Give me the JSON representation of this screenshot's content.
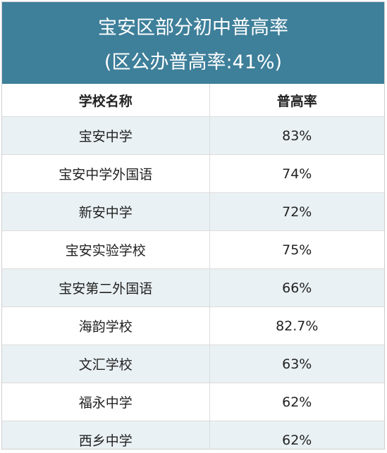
{
  "title": {
    "line1": "宝安区部分初中普高率",
    "line2": "(区公办普高率:41%)"
  },
  "table": {
    "headers": [
      "学校名称",
      "普高率"
    ],
    "rows": [
      {
        "school": "宝安中学",
        "rate": "83%"
      },
      {
        "school": "宝安中学外国语",
        "rate": "74%"
      },
      {
        "school": "新安中学",
        "rate": "72%"
      },
      {
        "school": "宝安实验学校",
        "rate": "75%"
      },
      {
        "school": "宝安第二外国语",
        "rate": "66%"
      },
      {
        "school": "海韵学校",
        "rate": "82.7%"
      },
      {
        "school": "文汇学校",
        "rate": "63%"
      },
      {
        "school": "福永中学",
        "rate": "62%"
      },
      {
        "school": "西乡中学",
        "rate": "62%"
      }
    ]
  },
  "colors": {
    "banner": "#3e7f9a",
    "stripe": "#eaf1f4"
  }
}
